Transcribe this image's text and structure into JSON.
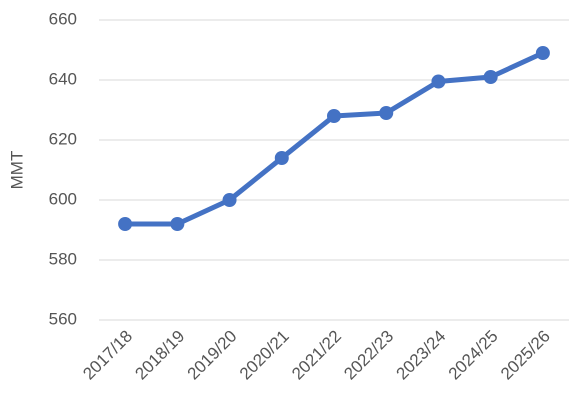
{
  "chart_data": {
    "type": "line",
    "y_label": "MMT",
    "categories": [
      "2017/18",
      "2018/19",
      "2019/20",
      "2020/21",
      "2021/22",
      "2022/23",
      "2023/24",
      "2024/25",
      "2025/26"
    ],
    "series": [
      {
        "name": "MMT",
        "color": "#4472c4",
        "values": [
          592,
          592,
          600,
          614,
          628,
          629,
          639.5,
          641,
          649
        ]
      }
    ],
    "ylim": [
      560,
      660
    ],
    "yticks": [
      560,
      580,
      600,
      620,
      640,
      660
    ],
    "grid": true
  }
}
